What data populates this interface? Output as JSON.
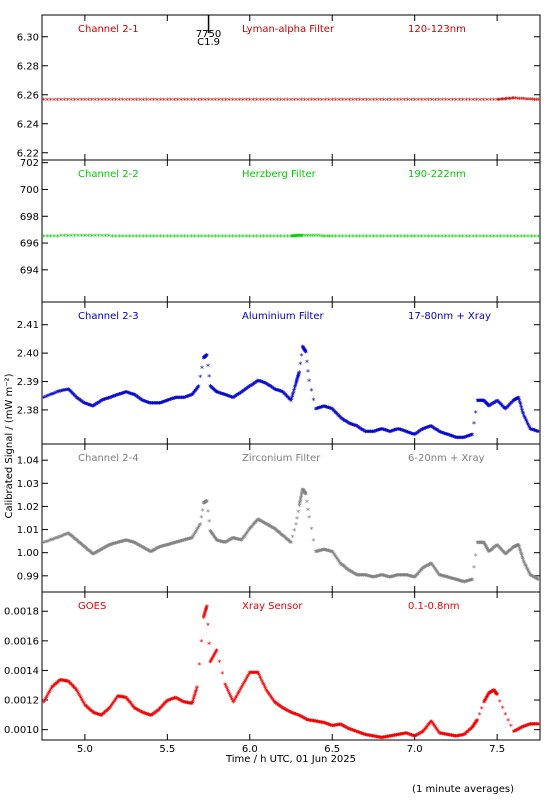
{
  "chart_data": {
    "type": "scatter",
    "x": {
      "label": "Time / h UTC, 01 Jun 2025",
      "range": [
        4.74,
        7.76
      ],
      "ticks": [
        "5.0",
        "5.5",
        "6.0",
        "6.5",
        "7.0",
        "7.5"
      ]
    },
    "ylabel": "Calibrated Signal / (mW m⁻²)",
    "footnote": "(1 minute averages)",
    "marker": {
      "top_label": "7750",
      "bottom_label": "C1.9",
      "x": 5.75
    },
    "panels": [
      {
        "channel": "Channel 2-1",
        "filter": "Lyman-alpha Filter",
        "band": "120-123nm",
        "color": "#cc0000",
        "ylim": [
          6.215,
          6.315
        ],
        "yticks": [
          "6.22",
          "6.24",
          "6.26",
          "6.28",
          "6.30"
        ],
        "points": [
          [
            4.75,
            6.256
          ],
          [
            5.0,
            6.256
          ],
          [
            5.25,
            6.256
          ],
          [
            5.5,
            6.256
          ],
          [
            5.75,
            6.256
          ],
          [
            6.0,
            6.256
          ],
          [
            6.25,
            6.256
          ],
          [
            6.5,
            6.256
          ],
          [
            6.75,
            6.256
          ],
          [
            7.0,
            6.256
          ],
          [
            7.25,
            6.256
          ],
          [
            7.5,
            6.256
          ],
          [
            7.6,
            6.257
          ],
          [
            7.75,
            6.256
          ]
        ]
      },
      {
        "channel": "Channel 2-2",
        "filter": "Herzberg Filter",
        "band": "190-222nm",
        "color": "#00cc00",
        "ylim": [
          691.6,
          702.2
        ],
        "yticks": [
          "694",
          "696",
          "698",
          "700",
          "702"
        ],
        "points": [
          [
            4.75,
            696.45
          ],
          [
            5.0,
            696.5
          ],
          [
            5.25,
            696.45
          ],
          [
            5.5,
            696.45
          ],
          [
            5.75,
            696.45
          ],
          [
            6.0,
            696.45
          ],
          [
            6.25,
            696.45
          ],
          [
            6.32,
            696.5
          ],
          [
            6.5,
            696.45
          ],
          [
            6.75,
            696.45
          ],
          [
            7.0,
            696.45
          ],
          [
            7.25,
            696.45
          ],
          [
            7.5,
            696.45
          ],
          [
            7.75,
            696.45
          ]
        ]
      },
      {
        "channel": "Channel 2-3",
        "filter": "Aluminium Filter",
        "band": "17-80nm + Xray",
        "color": "#0000cc",
        "ylim": [
          2.368,
          2.418
        ],
        "yticks": [
          "2.38",
          "2.39",
          "2.40",
          "2.41"
        ],
        "points": [
          [
            4.75,
            2.384
          ],
          [
            4.83,
            2.386
          ],
          [
            4.9,
            2.387
          ],
          [
            4.95,
            2.384
          ],
          [
            5.0,
            2.382
          ],
          [
            5.05,
            2.381
          ],
          [
            5.1,
            2.383
          ],
          [
            5.15,
            2.384
          ],
          [
            5.2,
            2.385
          ],
          [
            5.25,
            2.386
          ],
          [
            5.3,
            2.385
          ],
          [
            5.35,
            2.383
          ],
          [
            5.4,
            2.382
          ],
          [
            5.45,
            2.382
          ],
          [
            5.5,
            2.383
          ],
          [
            5.55,
            2.384
          ],
          [
            5.6,
            2.384
          ],
          [
            5.65,
            2.385
          ],
          [
            5.69,
            2.388
          ],
          [
            5.72,
            2.398
          ],
          [
            5.74,
            2.399
          ],
          [
            5.76,
            2.388
          ],
          [
            5.8,
            2.386
          ],
          [
            5.85,
            2.385
          ],
          [
            5.9,
            2.384
          ],
          [
            5.95,
            2.386
          ],
          [
            6.0,
            2.388
          ],
          [
            6.05,
            2.39
          ],
          [
            6.1,
            2.389
          ],
          [
            6.15,
            2.387
          ],
          [
            6.2,
            2.386
          ],
          [
            6.25,
            2.383
          ],
          [
            6.28,
            2.389
          ],
          [
            6.3,
            2.393
          ],
          [
            6.32,
            2.402
          ],
          [
            6.34,
            2.4
          ],
          [
            6.36,
            2.39
          ],
          [
            6.4,
            2.38
          ],
          [
            6.45,
            2.381
          ],
          [
            6.5,
            2.38
          ],
          [
            6.55,
            2.377
          ],
          [
            6.6,
            2.375
          ],
          [
            6.65,
            2.374
          ],
          [
            6.7,
            2.372
          ],
          [
            6.75,
            2.372
          ],
          [
            6.8,
            2.373
          ],
          [
            6.85,
            2.372
          ],
          [
            6.9,
            2.373
          ],
          [
            6.95,
            2.372
          ],
          [
            7.0,
            2.371
          ],
          [
            7.05,
            2.373
          ],
          [
            7.1,
            2.374
          ],
          [
            7.15,
            2.372
          ],
          [
            7.2,
            2.371
          ],
          [
            7.25,
            2.37
          ],
          [
            7.3,
            2.37
          ],
          [
            7.35,
            2.371
          ],
          [
            7.38,
            2.383
          ],
          [
            7.42,
            2.383
          ],
          [
            7.45,
            2.381
          ],
          [
            7.5,
            2.383
          ],
          [
            7.55,
            2.38
          ],
          [
            7.6,
            2.383
          ],
          [
            7.63,
            2.384
          ],
          [
            7.66,
            2.378
          ],
          [
            7.7,
            2.373
          ],
          [
            7.75,
            2.372
          ]
        ]
      },
      {
        "channel": "Channel 2-4",
        "filter": "Zirconium Filter",
        "band": "6-20nm + Xray",
        "color": "#808080",
        "ylim": [
          0.983,
          1.047
        ],
        "yticks": [
          "0.99",
          "1.00",
          "1.01",
          "1.02",
          "1.03",
          "1.04"
        ],
        "points": [
          [
            4.75,
            1.004
          ],
          [
            4.83,
            1.006
          ],
          [
            4.9,
            1.008
          ],
          [
            4.95,
            1.005
          ],
          [
            5.0,
            1.002
          ],
          [
            5.05,
            0.999
          ],
          [
            5.1,
            1.001
          ],
          [
            5.15,
            1.003
          ],
          [
            5.2,
            1.004
          ],
          [
            5.25,
            1.005
          ],
          [
            5.3,
            1.004
          ],
          [
            5.35,
            1.002
          ],
          [
            5.4,
            1.0
          ],
          [
            5.45,
            1.002
          ],
          [
            5.5,
            1.003
          ],
          [
            5.55,
            1.004
          ],
          [
            5.6,
            1.005
          ],
          [
            5.65,
            1.006
          ],
          [
            5.7,
            1.012
          ],
          [
            5.72,
            1.021
          ],
          [
            5.74,
            1.022
          ],
          [
            5.76,
            1.009
          ],
          [
            5.8,
            1.005
          ],
          [
            5.85,
            1.004
          ],
          [
            5.9,
            1.006
          ],
          [
            5.95,
            1.005
          ],
          [
            6.0,
            1.01
          ],
          [
            6.05,
            1.014
          ],
          [
            6.1,
            1.012
          ],
          [
            6.15,
            1.01
          ],
          [
            6.2,
            1.007
          ],
          [
            6.25,
            1.004
          ],
          [
            6.28,
            1.012
          ],
          [
            6.3,
            1.02
          ],
          [
            6.32,
            1.027
          ],
          [
            6.34,
            1.025
          ],
          [
            6.36,
            1.015
          ],
          [
            6.4,
            1.0
          ],
          [
            6.45,
            1.001
          ],
          [
            6.5,
            1.0
          ],
          [
            6.55,
            0.995
          ],
          [
            6.6,
            0.992
          ],
          [
            6.65,
            0.99
          ],
          [
            6.7,
            0.99
          ],
          [
            6.75,
            0.989
          ],
          [
            6.8,
            0.99
          ],
          [
            6.85,
            0.989
          ],
          [
            6.9,
            0.99
          ],
          [
            6.95,
            0.99
          ],
          [
            7.0,
            0.989
          ],
          [
            7.05,
            0.993
          ],
          [
            7.1,
            0.995
          ],
          [
            7.15,
            0.99
          ],
          [
            7.2,
            0.989
          ],
          [
            7.25,
            0.988
          ],
          [
            7.3,
            0.987
          ],
          [
            7.35,
            0.988
          ],
          [
            7.38,
            1.004
          ],
          [
            7.42,
            1.004
          ],
          [
            7.45,
            1.0
          ],
          [
            7.5,
            1.003
          ],
          [
            7.55,
            0.999
          ],
          [
            7.6,
            1.002
          ],
          [
            7.63,
            1.003
          ],
          [
            7.66,
            0.996
          ],
          [
            7.7,
            0.99
          ],
          [
            7.75,
            0.988
          ]
        ]
      },
      {
        "channel": "GOES",
        "filter": "Xray Sensor",
        "band": "0.1-0.8nm",
        "color": "#ee0000",
        "ylim": [
          0.00093,
          0.00193
        ],
        "yticks": [
          "0.0010",
          "0.0012",
          "0.0014",
          "0.0016",
          "0.0018"
        ],
        "points": [
          [
            4.75,
            0.00118
          ],
          [
            4.8,
            0.00128
          ],
          [
            4.85,
            0.00133
          ],
          [
            4.9,
            0.00132
          ],
          [
            4.95,
            0.00126
          ],
          [
            5.0,
            0.00116
          ],
          [
            5.05,
            0.00111
          ],
          [
            5.1,
            0.00109
          ],
          [
            5.15,
            0.00114
          ],
          [
            5.2,
            0.00122
          ],
          [
            5.25,
            0.00121
          ],
          [
            5.3,
            0.00114
          ],
          [
            5.35,
            0.00111
          ],
          [
            5.4,
            0.00109
          ],
          [
            5.45,
            0.00113
          ],
          [
            5.5,
            0.00119
          ],
          [
            5.55,
            0.00121
          ],
          [
            5.6,
            0.00118
          ],
          [
            5.65,
            0.00117
          ],
          [
            5.68,
            0.00128
          ],
          [
            5.72,
            0.00175
          ],
          [
            5.74,
            0.00183
          ],
          [
            5.76,
            0.00145
          ],
          [
            5.8,
            0.00153
          ],
          [
            5.85,
            0.0013
          ],
          [
            5.9,
            0.00118
          ],
          [
            5.95,
            0.00128
          ],
          [
            6.0,
            0.00138
          ],
          [
            6.05,
            0.00138
          ],
          [
            6.1,
            0.00126
          ],
          [
            6.15,
            0.00118
          ],
          [
            6.2,
            0.00114
          ],
          [
            6.25,
            0.00111
          ],
          [
            6.3,
            0.00109
          ],
          [
            6.35,
            0.00106
          ],
          [
            6.4,
            0.00105
          ],
          [
            6.45,
            0.00104
          ],
          [
            6.5,
            0.00102
          ],
          [
            6.55,
            0.00103
          ],
          [
            6.6,
            0.001
          ],
          [
            6.65,
            0.00098
          ],
          [
            6.7,
            0.00096
          ],
          [
            6.75,
            0.00095
          ],
          [
            6.8,
            0.00094
          ],
          [
            6.85,
            0.00095
          ],
          [
            6.9,
            0.00096
          ],
          [
            6.95,
            0.00097
          ],
          [
            7.0,
            0.00095
          ],
          [
            7.05,
            0.00098
          ],
          [
            7.1,
            0.00105
          ],
          [
            7.15,
            0.00097
          ],
          [
            7.2,
            0.00096
          ],
          [
            7.25,
            0.00095
          ],
          [
            7.3,
            0.00096
          ],
          [
            7.35,
            0.00101
          ],
          [
            7.38,
            0.00106
          ],
          [
            7.42,
            0.00118
          ],
          [
            7.45,
            0.00124
          ],
          [
            7.48,
            0.00126
          ],
          [
            7.5,
            0.00123
          ],
          [
            7.55,
            0.0011
          ],
          [
            7.6,
            0.00098
          ],
          [
            7.65,
            0.00101
          ],
          [
            7.7,
            0.00103
          ],
          [
            7.75,
            0.00103
          ]
        ]
      }
    ]
  }
}
